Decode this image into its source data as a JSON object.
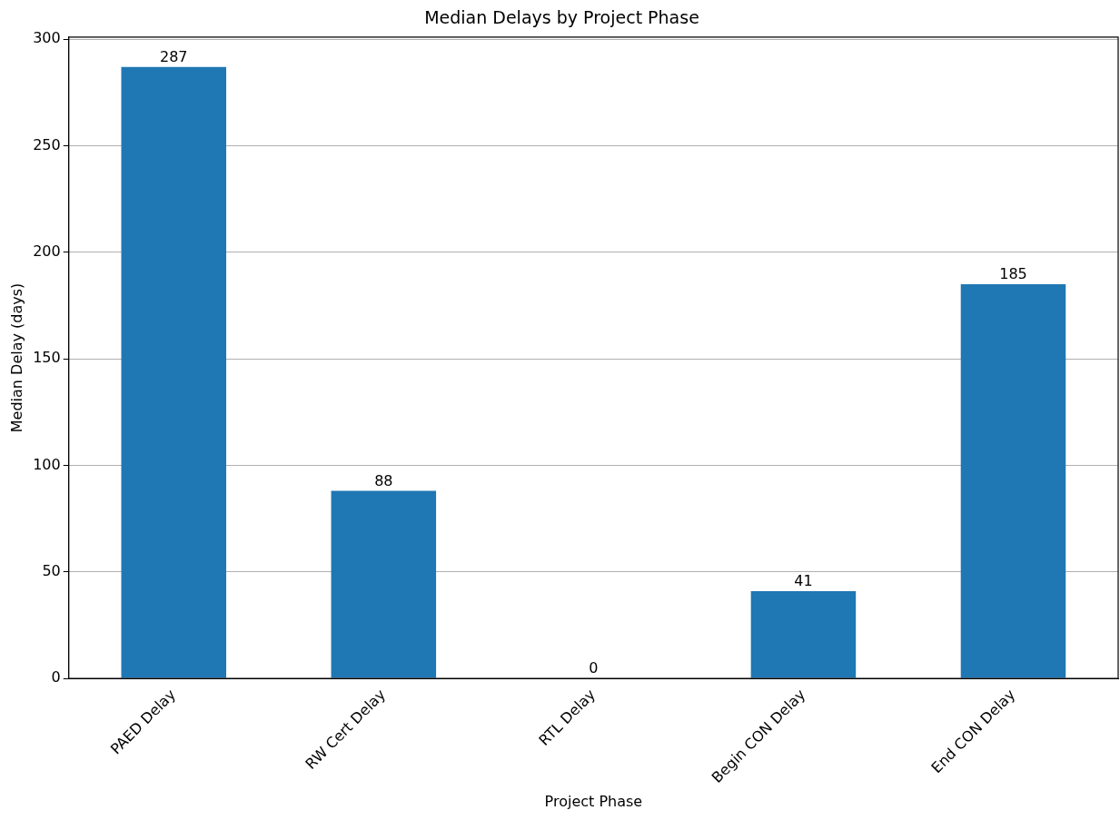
{
  "chart_data": {
    "type": "bar",
    "title": "Median Delays by Project Phase",
    "xlabel": "Project Phase",
    "ylabel": "Median Delay (days)",
    "categories": [
      "PAED Delay",
      "RW Cert Delay",
      "RTL Delay",
      "Begin CON Delay",
      "End CON Delay"
    ],
    "values": [
      287,
      88,
      0,
      41,
      185
    ],
    "color": "#1f77b4",
    "ylim": [
      0,
      301
    ],
    "yticks": [
      0,
      50,
      100,
      150,
      200,
      250,
      300
    ],
    "grid": "y",
    "data_labels": true
  }
}
